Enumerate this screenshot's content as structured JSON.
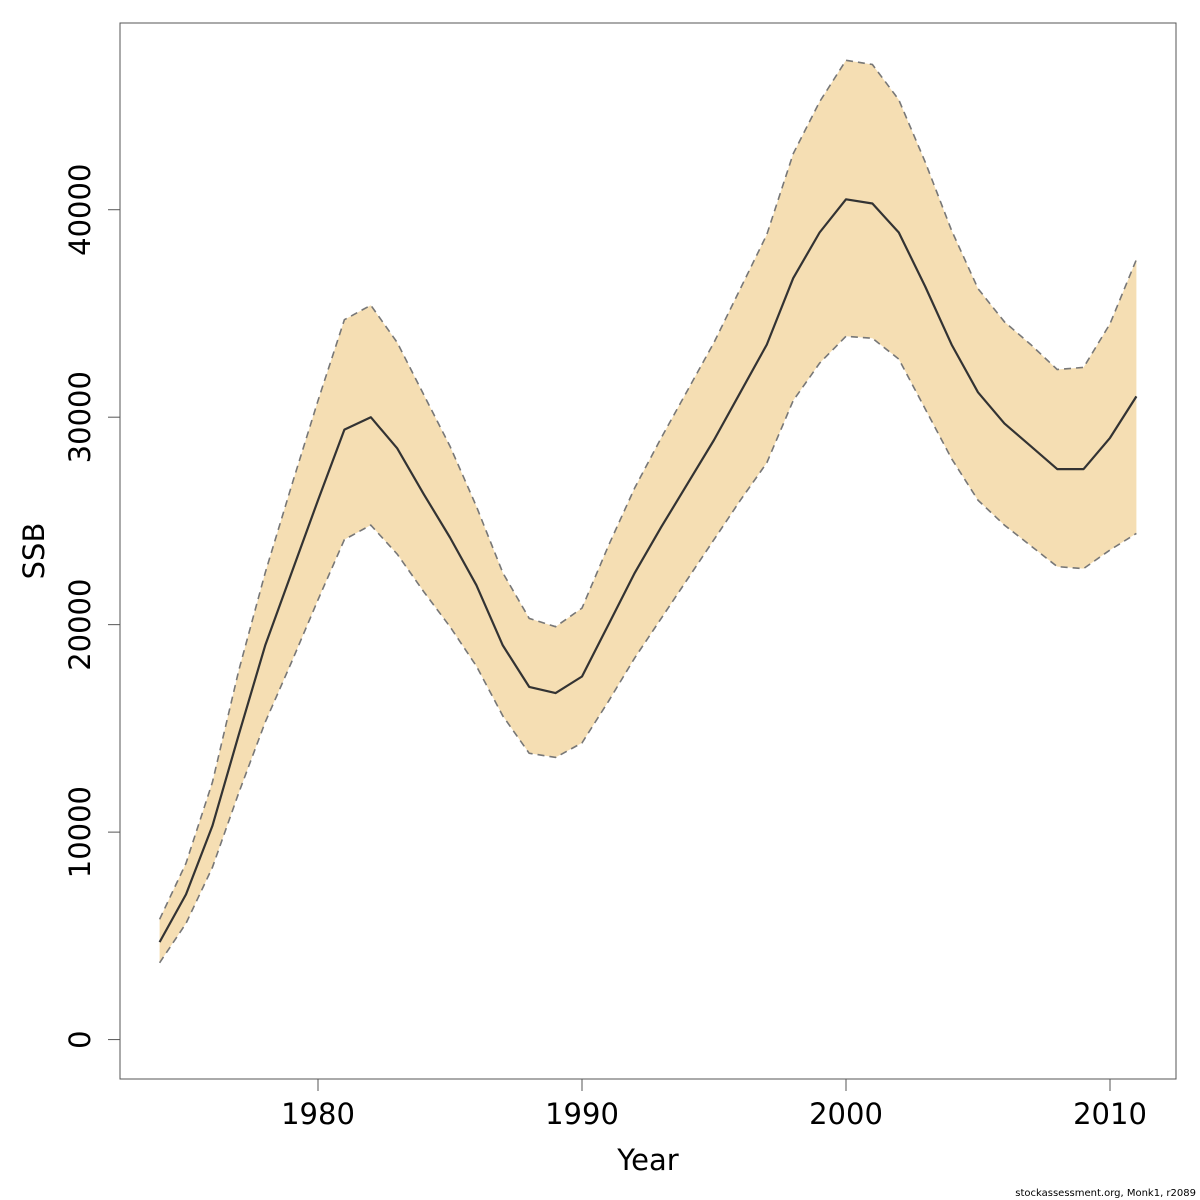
{
  "chart_data": {
    "type": "area",
    "xlabel": "Year",
    "ylabel": "SSB",
    "xlim": [
      1972.5,
      2012.5
    ],
    "ylim": [
      -1900,
      49000
    ],
    "x_ticks": [
      1980,
      1990,
      2000,
      2010
    ],
    "y_ticks": [
      0,
      10000,
      20000,
      30000,
      40000
    ],
    "x_tick_labels": [
      "1980",
      "1990",
      "2000",
      "2010"
    ],
    "y_tick_labels": [
      "0",
      "10000",
      "20000",
      "30000",
      "40000"
    ],
    "x": [
      1974,
      1975,
      1976,
      1977,
      1978,
      1979,
      1980,
      1981,
      1982,
      1983,
      1984,
      1985,
      1986,
      1987,
      1988,
      1989,
      1990,
      1991,
      1992,
      1993,
      1994,
      1995,
      1996,
      1997,
      1998,
      1999,
      2000,
      2001,
      2002,
      2003,
      2004,
      2005,
      2006,
      2007,
      2008,
      2009,
      2010,
      2011
    ],
    "estimate": [
      4700,
      7000,
      10300,
      14700,
      19000,
      22500,
      26000,
      29400,
      30000,
      28500,
      26300,
      24200,
      21900,
      19000,
      17000,
      16700,
      17500,
      20000,
      22500,
      24700,
      26800,
      28900,
      31200,
      33500,
      36700,
      38900,
      40500,
      40300,
      38900,
      36300,
      33500,
      31200,
      29700,
      28600,
      27500,
      27500,
      29000,
      31000
    ],
    "upper": [
      5800,
      8500,
      12400,
      17800,
      22500,
      26700,
      30800,
      34700,
      35400,
      33600,
      31100,
      28600,
      25700,
      22500,
      20300,
      19900,
      20800,
      23800,
      26600,
      29000,
      31300,
      33600,
      36200,
      38800,
      42700,
      45200,
      47200,
      47000,
      45300,
      42300,
      39000,
      36200,
      34600,
      33500,
      32300,
      32400,
      34500,
      37600
    ],
    "lower": [
      3700,
      5600,
      8300,
      11900,
      15300,
      18200,
      21200,
      24100,
      24800,
      23400,
      21600,
      19900,
      18000,
      15600,
      13800,
      13600,
      14300,
      16300,
      18400,
      20300,
      22200,
      24100,
      26000,
      27800,
      30800,
      32600,
      33900,
      33800,
      32800,
      30400,
      28000,
      26000,
      24800,
      23800,
      22800,
      22700,
      23600,
      24400
    ],
    "band_color": "#F5DEB3",
    "line_color": "#333333",
    "bound_color": "#777777",
    "grid": false,
    "credit": "stockassessment.org, Monk1, r2089"
  }
}
